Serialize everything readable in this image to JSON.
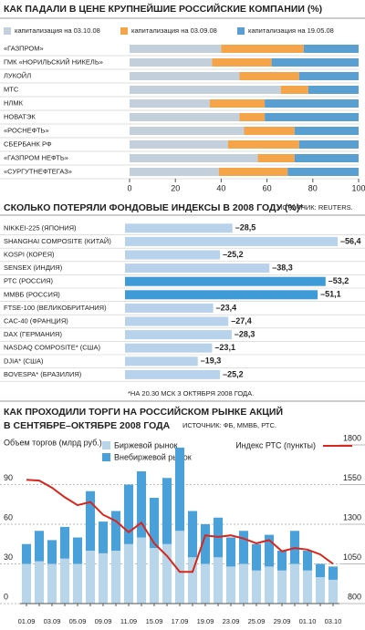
{
  "chart_data": [
    {
      "type": "bar",
      "title": "КАК ПАДАЛИ В ЦЕНЕ КРУПНЕЙШИЕ РОССИЙСКИЕ КОМПАНИИ (%)",
      "categories": [
        "«ГАЗПРОМ»",
        "ГМК «НОРИЛЬСКИЙ НИКЕЛЬ»",
        "ЛУКОЙЛ",
        "МТС",
        "НЛМК",
        "НОВАТЭК",
        "«РОСНЕФТЬ»",
        "СБЕРБАНК РФ",
        "«ГАЗПРОМ НЕФТЬ»",
        "«СУРГУТНЕФТЕГАЗ»"
      ],
      "series": [
        {
          "name": "капитализация на 03.10.08",
          "color": "#c3cfda",
          "values": [
            40,
            36,
            48,
            66,
            35,
            48,
            50,
            43,
            56,
            39
          ]
        },
        {
          "name": "капитализация на 03.09.08",
          "color": "#f5a449",
          "values": [
            36,
            26,
            26,
            12,
            24,
            11,
            22,
            31,
            16,
            30
          ]
        },
        {
          "name": "капитализация на 19.05.08",
          "color": "#5a9fd2",
          "values": [
            24,
            38,
            26,
            22,
            41,
            41,
            28,
            26,
            28,
            31
          ]
        }
      ],
      "xlim": [
        0,
        100
      ],
      "xticks": [
        0,
        20,
        40,
        60,
        80,
        100
      ]
    },
    {
      "type": "bar",
      "title": "СКОЛЬКО ПОТЕРЯЛИ ФОНДОВЫЕ ИНДЕКСЫ В 2008 ГОДУ (%)*",
      "source": "ИСТОЧНИК: REUTERS.",
      "footnote": "*НА 20.30 МСК 3 ОКТЯБРЯ 2008 ГОДА.",
      "categories": [
        "NIKKEI-225 (ЯПОНИЯ)",
        "SHANGHAI COMPOSITE (КИТАЙ)",
        "KOSPI (КОРЕЯ)",
        "SENSEX (ИНДИЯ)",
        "РТС (РОССИЯ)",
        "ММВБ (РОССИЯ)",
        "FTSE-100 (ВЕЛИКОБРИТАНИЯ)",
        "CAC-40 (ФРАНЦИЯ)",
        "DAX (ГЕРМАНИЯ)",
        "NASDAQ COMPOSITE* (США)",
        "DJIA* (США)",
        "BOVESPA* (БРАЗИЛИЯ)"
      ],
      "values": [
        -28.5,
        -56.4,
        -25.2,
        -38.3,
        -53.2,
        -51.1,
        -23.4,
        -27.4,
        -28.3,
        -23.1,
        -19.3,
        -25.2
      ],
      "value_labels": [
        "–28,5",
        "–56,4",
        "–25,2",
        "–38,3",
        "–53,2",
        "–51,1",
        "–23,4",
        "–27,4",
        "–28,3",
        "–23,1",
        "–19,3",
        "–25,2"
      ],
      "colors": [
        "#b7d2ea",
        "#b7d2ea",
        "#b7d2ea",
        "#b7d2ea",
        "#3f9bd8",
        "#3f9bd8",
        "#b7d2ea",
        "#b7d2ea",
        "#b7d2ea",
        "#b7d2ea",
        "#b7d2ea",
        "#b7d2ea"
      ]
    },
    {
      "type": "combo",
      "title": [
        "КАК ПРОХОДИЛИ ТОРГИ НА РОССИЙСКОМ РЫНКЕ АКЦИЙ",
        "В СЕНТЯБРЕ–ОКТЯБРЕ 2008 ГОДА"
      ],
      "source": "ИСТОЧНИК: ФБ, ММВБ, РТС.",
      "ylabel": "Объем торгов (млрд руб.)",
      "categories": [
        "01.09",
        null,
        "03.09",
        null,
        "05.09",
        null,
        "09.09",
        null,
        "11.09",
        null,
        "15.09",
        null,
        "17.09",
        null,
        "19.09",
        null,
        "23.09",
        null,
        "25.09",
        null,
        "29.09",
        null,
        "01.10",
        null,
        "03.10"
      ],
      "series": [
        {
          "name": "Биржевой рынок",
          "color": "#b9d5ea",
          "values": [
            30,
            32,
            30,
            34,
            30,
            40,
            38,
            40,
            45,
            50,
            42,
            45,
            55,
            35,
            30,
            35,
            28,
            30,
            25,
            28,
            25,
            30,
            25,
            20,
            18
          ]
        },
        {
          "name": "Внебиржевой рынок",
          "color": "#4aa0d8",
          "values": [
            15,
            23,
            18,
            24,
            20,
            45,
            24,
            30,
            45,
            50,
            38,
            50,
            63,
            35,
            30,
            30,
            22,
            25,
            20,
            24,
            15,
            25,
            15,
            10,
            10
          ]
        },
        {
          "name": "Индекс РТС (пункты)",
          "color": "#d9261c",
          "axis": "y2",
          "values": [
            1580,
            1575,
            1530,
            1470,
            1420,
            1440,
            1360,
            1320,
            1250,
            1310,
            1180,
            1100,
            1000,
            1000,
            1230,
            1220,
            1230,
            1210,
            1180,
            1200,
            1130,
            1150,
            1140,
            1110,
            1050
          ]
        }
      ],
      "ylim": [
        0,
        120
      ],
      "yticks": [
        0,
        30,
        60,
        90
      ],
      "y2lim": [
        800,
        1800
      ],
      "y2ticks": [
        800,
        1050,
        1300,
        1550,
        1800
      ],
      "grid": true
    }
  ]
}
